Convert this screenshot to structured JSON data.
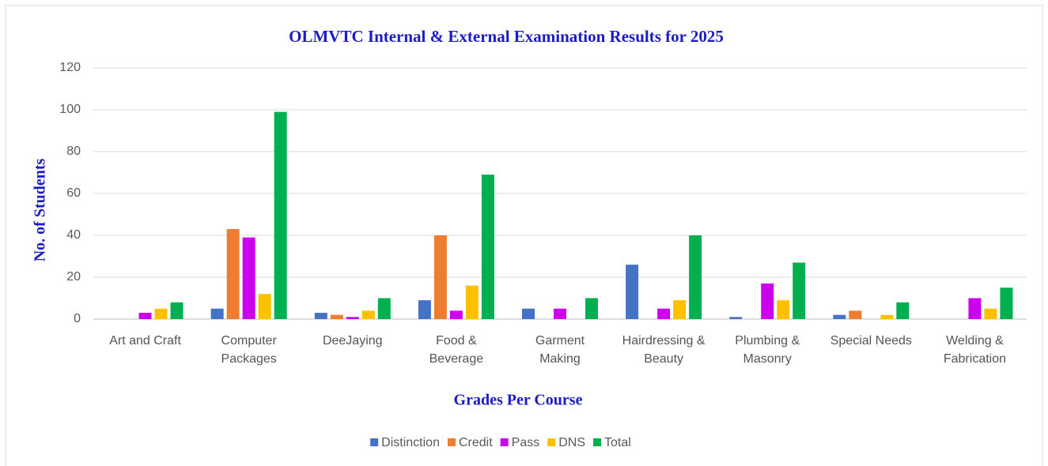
{
  "chart_data": {
    "type": "bar",
    "title": "OLMVTC Internal & External Examination Results for 2025",
    "x_label": "Grades Per Course",
    "y_label": "No. of Students",
    "categories": [
      "Art and Craft",
      "Computer Packages",
      "DeeJaying",
      "Food & Beverage",
      "Garment Making",
      "Hairdressing & Beauty",
      "Plumbing & Masonry",
      "Special Needs",
      "Welding & Fabrication"
    ],
    "series": [
      {
        "name": "Distinction",
        "color": "#4472c4",
        "values": [
          0,
          5,
          3,
          9,
          5,
          26,
          1,
          2,
          0
        ]
      },
      {
        "name": "Credit",
        "color": "#ed7d31",
        "values": [
          0,
          43,
          2,
          40,
          0,
          0,
          0,
          4,
          0
        ]
      },
      {
        "name": "Pass",
        "color": "#cc00ee",
        "values": [
          3,
          39,
          1,
          4,
          5,
          5,
          17,
          0,
          10
        ]
      },
      {
        "name": "DNS",
        "color": "#ffc000",
        "values": [
          5,
          12,
          4,
          16,
          0,
          9,
          9,
          2,
          5
        ]
      },
      {
        "name": "Total",
        "color": "#00b050",
        "values": [
          8,
          99,
          10,
          69,
          10,
          40,
          27,
          8,
          15
        ]
      }
    ],
    "ylim": [
      0,
      120
    ],
    "yticks": [
      0,
      20,
      40,
      60,
      80,
      100,
      120
    ],
    "grid": true,
    "legend": "bottom"
  }
}
